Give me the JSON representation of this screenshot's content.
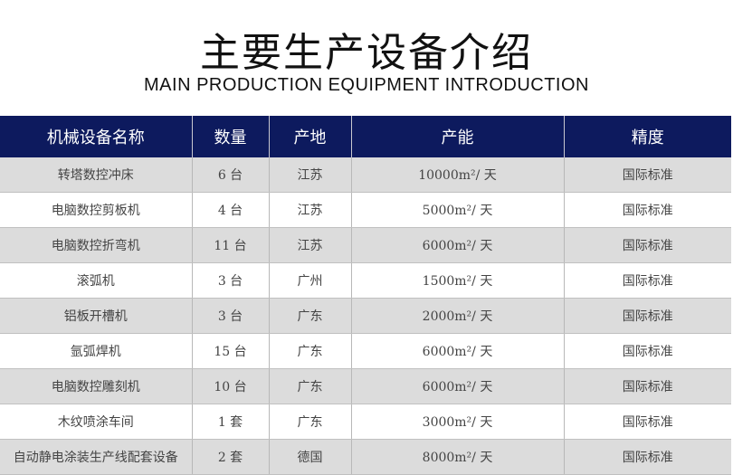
{
  "title": "主要生产设备介绍",
  "subtitle": "MAIN PRODUCTION EQUIPMENT INTRODUCTION",
  "columns": [
    "机械设备名称",
    "数量",
    "产地",
    "产能",
    "精度"
  ],
  "rows": [
    [
      "转塔数控冲床",
      "6 台",
      "江苏",
      "10000m²/ 天",
      "国际标准"
    ],
    [
      "电脑数控剪板机",
      "4 台",
      "江苏",
      "5000m²/ 天",
      "国际标准"
    ],
    [
      "电脑数控折弯机",
      "11 台",
      "江苏",
      "6000m²/ 天",
      "国际标准"
    ],
    [
      "滚弧机",
      "3 台",
      "广州",
      "1500m²/ 天",
      "国际标准"
    ],
    [
      "铝板开槽机",
      "3 台",
      "广东",
      "2000m²/ 天",
      "国际标准"
    ],
    [
      "氩弧焊机",
      "15 台",
      "广东",
      "6000m²/ 天",
      "国际标准"
    ],
    [
      "电脑数控雕刻机",
      "10 台",
      "广东",
      "6000m²/ 天",
      "国际标准"
    ],
    [
      "木纹喷涂车间",
      "1 套",
      "广东",
      "3000m²/ 天",
      "国际标准"
    ],
    [
      "自动静电涂装生产线配套设备",
      "2 套",
      "德国",
      "8000m²/ 天",
      "国际标准"
    ]
  ],
  "colors": {
    "header": "#0d1a5e",
    "stripe": "#dcdcdc"
  }
}
